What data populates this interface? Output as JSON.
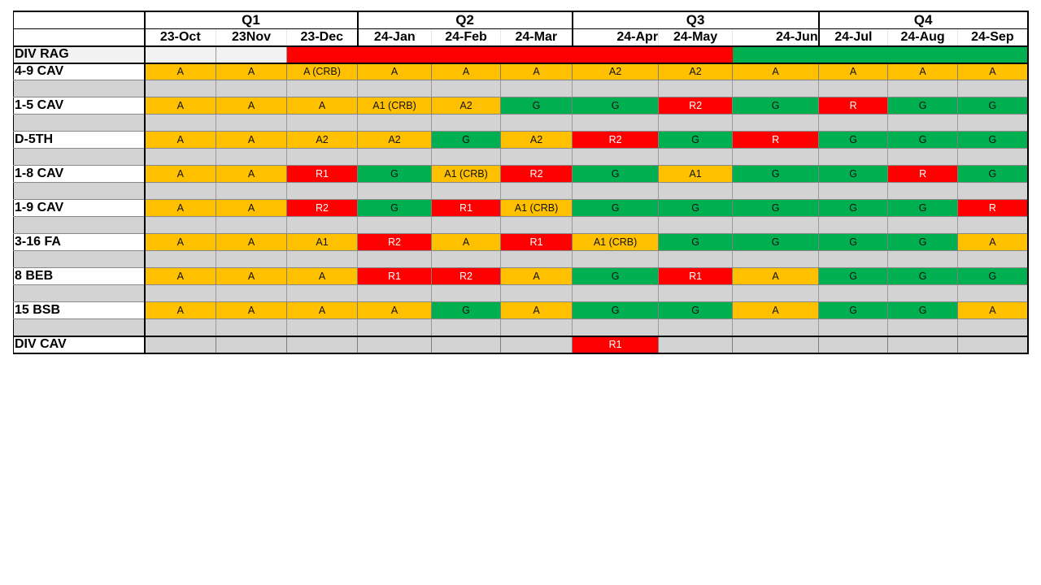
{
  "chart_data": {
    "type": "table",
    "quarters": [
      {
        "label": "Q1",
        "span": 3
      },
      {
        "label": "Q2",
        "span": 3
      },
      {
        "label": "Q3",
        "span": 3
      },
      {
        "label": "Q4",
        "span": 3
      }
    ],
    "months": [
      "23-Oct",
      "23Nov",
      "23-Dec",
      "24-Jan",
      "24-Feb",
      "24-Mar",
      "24-Apr",
      "24-May",
      "24-Jun",
      "24-Jul",
      "24-Aug",
      "24-Sep"
    ],
    "div_rag": {
      "label": "DIV RAG",
      "statuses": [
        "",
        "",
        "R",
        "R",
        "R",
        "R",
        "R",
        "R",
        "G",
        "G",
        "G",
        "G"
      ]
    },
    "units": [
      {
        "label": "4-9 CAV",
        "values": [
          "A",
          "A",
          "A (CRB)",
          "A",
          "A",
          "A",
          "A2",
          "A2",
          "A",
          "A",
          "A",
          "A"
        ]
      },
      {
        "label": "1-5 CAV",
        "values": [
          "A",
          "A",
          "A",
          "A1 (CRB)",
          "A2",
          "G",
          "G",
          "R2",
          "G",
          "R",
          "G",
          "G"
        ]
      },
      {
        "label": "D-5TH",
        "values": [
          "A",
          "A",
          "A2",
          "A2",
          "G",
          "A2",
          "R2",
          "G",
          "R",
          "G",
          "G",
          "G"
        ]
      },
      {
        "label": "1-8 CAV",
        "values": [
          "A",
          "A",
          "R1",
          "G",
          "A1 (CRB)",
          "R2",
          "G",
          "A1",
          "G",
          "G",
          "R",
          "G"
        ]
      },
      {
        "label": "1-9 CAV",
        "values": [
          "A",
          "A",
          "R2",
          "G",
          "R1",
          "A1 (CRB)",
          "G",
          "G",
          "G",
          "G",
          "G",
          "R"
        ]
      },
      {
        "label": "3-16 FA",
        "values": [
          "A",
          "A",
          "A1",
          "R2",
          "A",
          "R1",
          "A1 (CRB)",
          "G",
          "G",
          "G",
          "G",
          "A"
        ]
      },
      {
        "label": "8 BEB",
        "values": [
          "A",
          "A",
          "A",
          "R1",
          "R2",
          "A",
          "G",
          "R1",
          "A",
          "G",
          "G",
          "G"
        ]
      },
      {
        "label": "15 BSB",
        "values": [
          "A",
          "A",
          "A",
          "A",
          "G",
          "A",
          "G",
          "G",
          "A",
          "G",
          "G",
          "A"
        ]
      }
    ],
    "div_cav": {
      "label": "DIV CAV",
      "values": [
        "",
        "",
        "",
        "",
        "",
        "",
        "R1",
        "",
        "",
        "",
        "",
        ""
      ]
    },
    "colors": {
      "A": "#ffc000",
      "G": "#00b050",
      "R": "#ff0000",
      "none": "#d3d3d3"
    }
  }
}
